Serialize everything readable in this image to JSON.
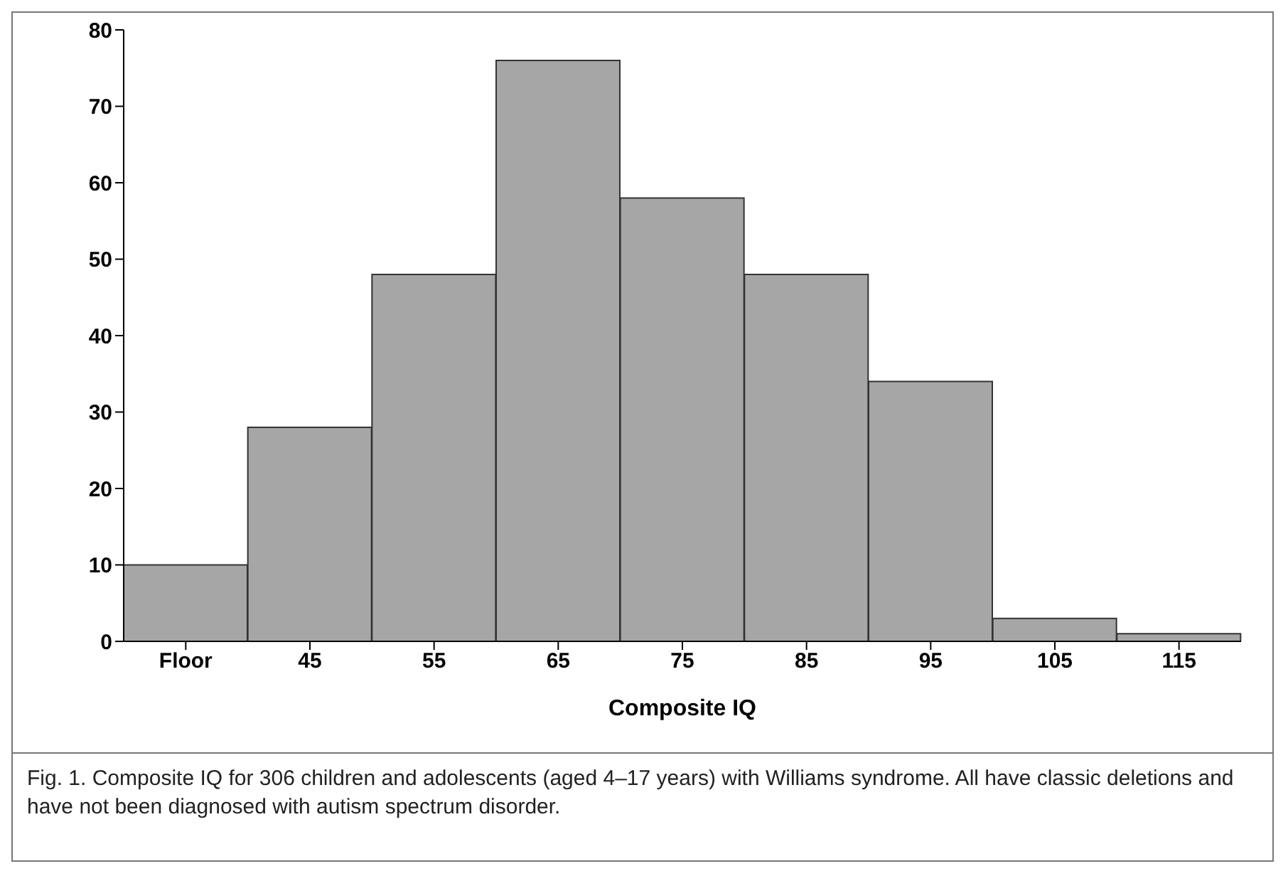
{
  "chart_data": {
    "type": "bar",
    "xlabel": "Composite IQ",
    "categories": [
      "Floor",
      "45",
      "55",
      "65",
      "75",
      "85",
      "95",
      "105",
      "115"
    ],
    "values": [
      10,
      28,
      48,
      76,
      58,
      48,
      34,
      3,
      1
    ],
    "color": "#a6a6a6",
    "ylim": [
      0,
      80
    ],
    "yticks": [
      0,
      10,
      20,
      30,
      40,
      50,
      60,
      70,
      80
    ],
    "grid": false,
    "legend": false,
    "annotations": [
      "Fig. 1.    Composite IQ for 306 children and adolescents (aged 4–17 years) with Williams syndrome. All have classic deletions and have not been diagnosed with autism spectrum disorder."
    ]
  }
}
